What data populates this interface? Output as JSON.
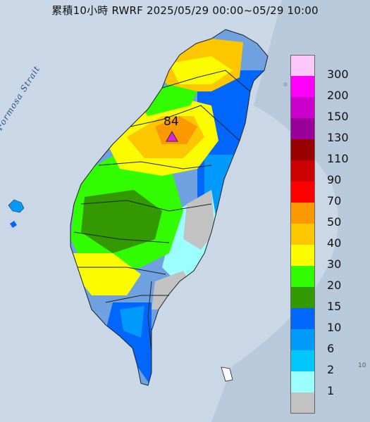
{
  "title": "累積10小時 RWRF 2025/05/29 00:00~05/29 10:00",
  "sea_label": "Formosa Strait",
  "peak": {
    "value": "84",
    "marker_color": "#e020e0"
  },
  "corner_text": "10",
  "legend": {
    "labels": [
      "300",
      "200",
      "150",
      "130",
      "110",
      "90",
      "70",
      "50",
      "40",
      "30",
      "20",
      "15",
      "10",
      "6",
      "2",
      "1"
    ],
    "colors": [
      "#fcc8fc",
      "#fc00fc",
      "#cc00cc",
      "#99009a",
      "#990000",
      "#cc0000",
      "#fc0000",
      "#fc9800",
      "#fcc700",
      "#fcfc00",
      "#32fc00",
      "#339900",
      "#0066fc",
      "#0099fc",
      "#00c8fc",
      "#9dfefe",
      "#c2c2c2"
    ]
  },
  "colors": {
    "sea": "#c9d7e6",
    "land_base": "#9bb0c8",
    "county_border": "#222222"
  }
}
